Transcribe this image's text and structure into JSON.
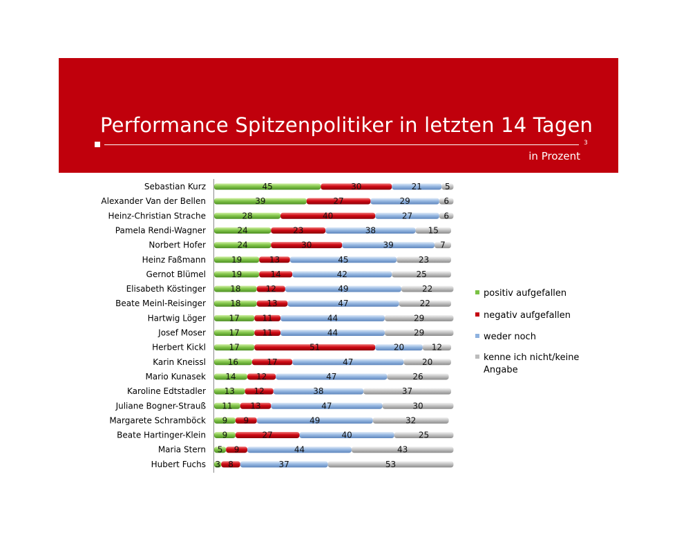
{
  "header": {
    "title": "Performance Spitzenpolitiker in letzten 14 Tagen",
    "subtitle": "in Prozent",
    "page_number": "3"
  },
  "colors": {
    "banner": "#c0000c",
    "positiv": "#7ac143",
    "negativ": "#c40010",
    "weder": "#8eb2df",
    "keine": "#bcbcbc"
  },
  "chart_data": {
    "type": "bar",
    "orientation": "horizontal",
    "stacked": true,
    "title": "",
    "xlabel": "",
    "ylabel": "",
    "xlim": [
      0,
      100
    ],
    "grid": false,
    "legend_position": "right",
    "categories": [
      "Sebastian Kurz",
      "Alexander Van der Bellen",
      "Heinz-Christian Strache",
      "Pamela Rendi-Wagner",
      "Norbert Hofer",
      "Heinz Faßmann",
      "Gernot Blümel",
      "Elisabeth Köstinger",
      "Beate Meinl-Reisinger",
      "Hartwig Löger",
      "Josef Moser",
      "Herbert Kickl",
      "Karin Kneissl",
      "Mario Kunasek",
      "Karoline Edtstadler",
      "Juliane Bogner-Strauß",
      "Margarete Schramböck",
      "Beate Hartinger-Klein",
      "Maria Stern",
      "Hubert Fuchs"
    ],
    "series": [
      {
        "name": "positiv aufgefallen",
        "values": [
          45,
          39,
          28,
          24,
          24,
          19,
          19,
          18,
          18,
          17,
          17,
          17,
          16,
          14,
          13,
          11,
          9,
          9,
          5,
          3
        ]
      },
      {
        "name": "negativ aufgefallen",
        "values": [
          30,
          27,
          40,
          23,
          30,
          13,
          14,
          12,
          13,
          11,
          11,
          51,
          17,
          12,
          12,
          13,
          9,
          27,
          9,
          8
        ]
      },
      {
        "name": "weder noch",
        "values": [
          21,
          29,
          27,
          38,
          39,
          45,
          42,
          49,
          47,
          44,
          44,
          20,
          47,
          47,
          38,
          47,
          49,
          40,
          44,
          37
        ]
      },
      {
        "name": "kenne ich nicht/keine Angabe",
        "values": [
          5,
          6,
          6,
          15,
          7,
          23,
          25,
          22,
          22,
          29,
          29,
          12,
          20,
          26,
          37,
          30,
          32,
          25,
          43,
          53
        ]
      }
    ]
  }
}
